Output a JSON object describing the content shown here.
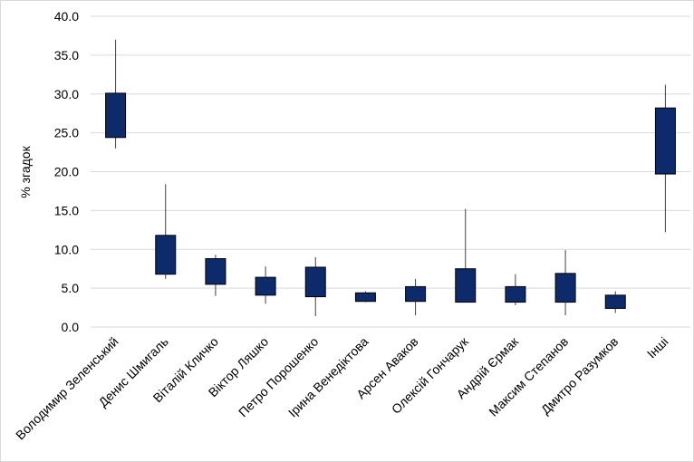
{
  "chart_data": {
    "type": "candlestick",
    "title": "",
    "xlabel": "",
    "ylabel": "% згадок",
    "ylim": [
      0,
      40
    ],
    "yticks": [
      "0.0",
      "5.0",
      "10.0",
      "15.0",
      "20.0",
      "25.0",
      "30.0",
      "35.0",
      "40.0"
    ],
    "grid": true,
    "legend": "none",
    "colors": {
      "box": "#0d2a6b",
      "line": "#404040",
      "grid": "#d9d9d9"
    },
    "categories": [
      "Володимир Зеленський",
      "Денис Шмигаль",
      "Віталій Кличко",
      "Віктор Ляшко",
      "Петро Порошенко",
      "Ірина Венедіктова",
      "Арсен Аваков",
      "Олексій Гончарук",
      "Андрій Єрмак",
      "Максим Степанов",
      "Дмитро Разумков",
      "Інші"
    ],
    "series": [
      {
        "low": [
          23.0,
          6.2,
          4.0,
          3.0,
          1.4,
          3.2,
          1.5,
          3.2,
          2.8,
          1.5,
          1.8,
          12.2
        ],
        "q1": [
          24.4,
          6.8,
          5.5,
          4.1,
          3.9,
          3.3,
          3.3,
          3.2,
          3.2,
          3.2,
          2.4,
          19.7
        ],
        "q3": [
          30.1,
          11.8,
          8.8,
          6.4,
          7.7,
          4.4,
          5.2,
          7.5,
          5.2,
          6.9,
          4.1,
          28.2
        ],
        "high": [
          37.0,
          18.4,
          9.3,
          7.8,
          9.0,
          4.6,
          6.2,
          15.2,
          6.8,
          9.9,
          4.6,
          31.2
        ]
      }
    ]
  }
}
